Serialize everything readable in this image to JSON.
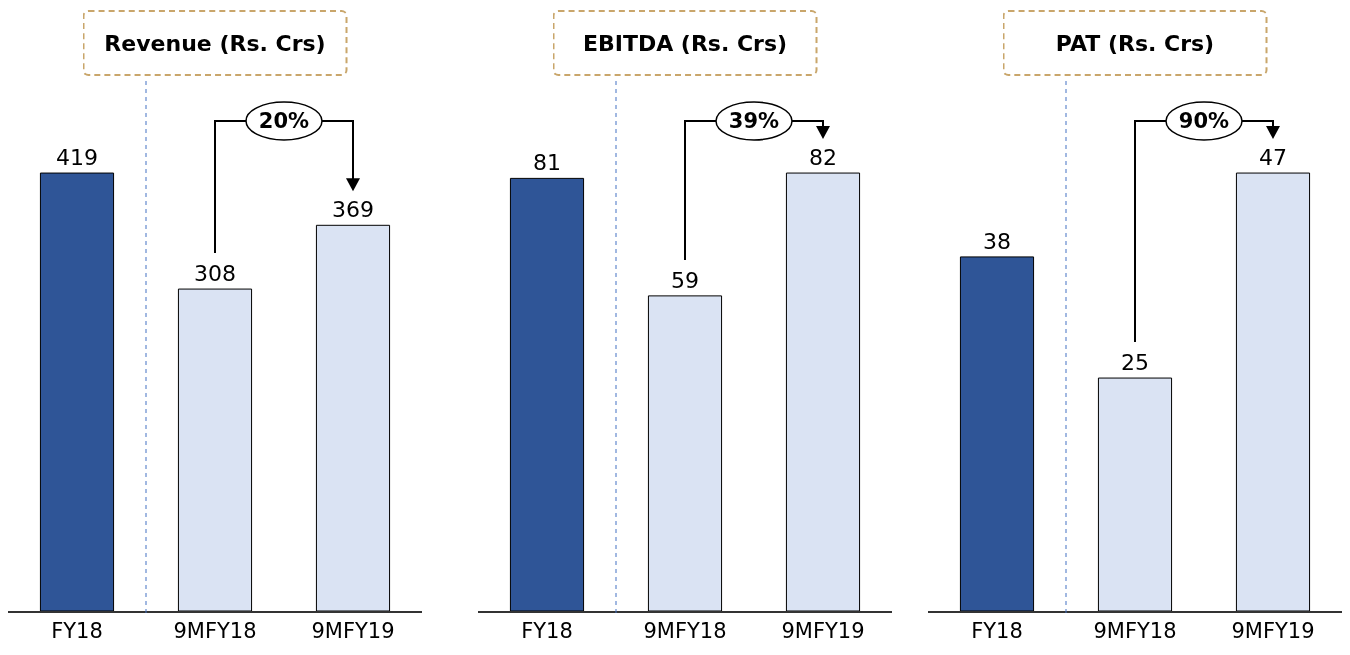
{
  "chart_data": [
    {
      "type": "bar",
      "title": "Revenue (Rs. Crs)",
      "categories": [
        "FY18",
        "9MFY18",
        "9MFY19"
      ],
      "values": [
        419,
        308,
        369
      ],
      "colors": [
        "#2f5597",
        "#dae3f3",
        "#dae3f3"
      ],
      "data_labels": true,
      "tick_labels": "x",
      "grid": false,
      "annotations": [
        "20%"
      ]
    },
    {
      "type": "bar",
      "title": "EBITDA (Rs. Crs)",
      "categories": [
        "FY18",
        "9MFY18",
        "9MFY19"
      ],
      "values": [
        81,
        59,
        82
      ],
      "colors": [
        "#2f5597",
        "#dae3f3",
        "#dae3f3"
      ],
      "data_labels": true,
      "tick_labels": "x",
      "grid": false,
      "annotations": [
        "39%"
      ]
    },
    {
      "type": "bar",
      "title": "PAT (Rs. Crs)",
      "categories": [
        "FY18",
        "9MFY18",
        "9MFY19"
      ],
      "values": [
        38,
        25,
        47
      ],
      "colors": [
        "#2f5597",
        "#dae3f3",
        "#dae3f3"
      ],
      "data_labels": true,
      "tick_labels": "x",
      "grid": false,
      "annotations": [
        "90%"
      ]
    }
  ]
}
